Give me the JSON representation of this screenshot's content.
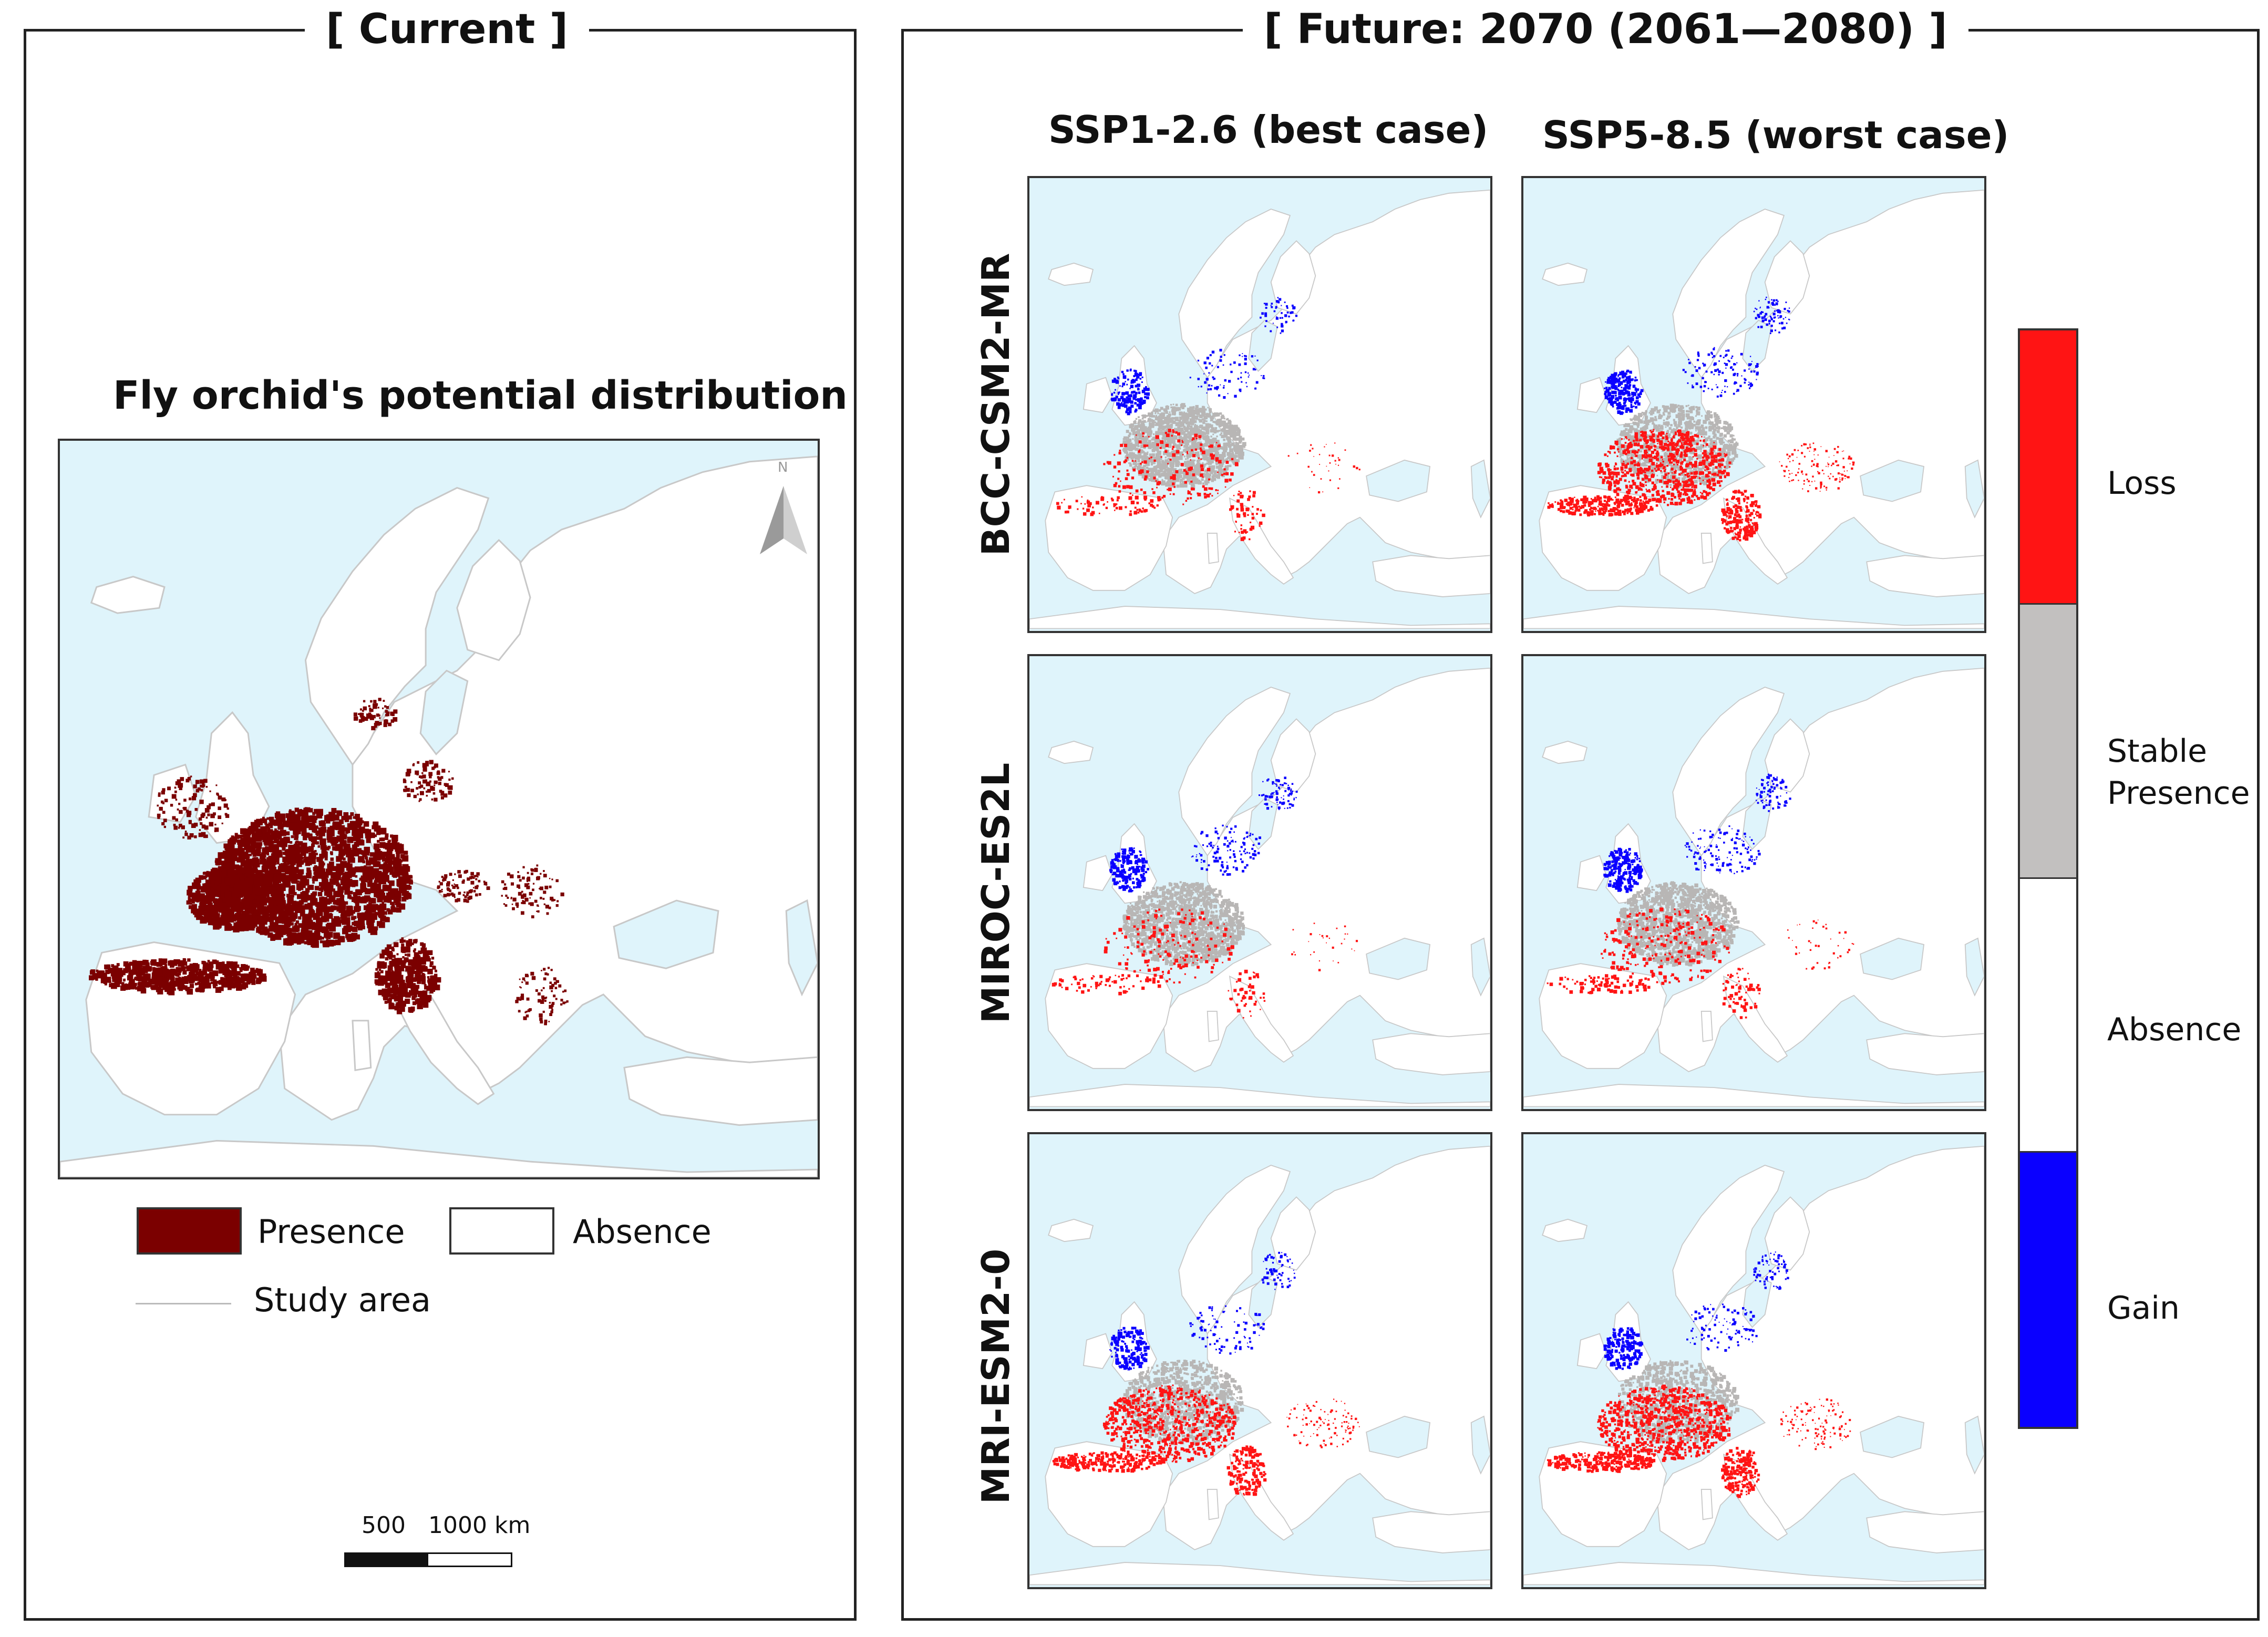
{
  "current": {
    "frame_title": "[ Current ]",
    "map_title": "Fly orchid's potential distribution",
    "north_label": "N",
    "legend": {
      "presence": "Presence",
      "absence": "Absence",
      "study_area": "Study area"
    },
    "scale": {
      "label_a": "500",
      "label_b": "1000 km"
    }
  },
  "future": {
    "frame_title": "[ Future: 2070 (2061—2080) ]",
    "scenarios": [
      "SSP1-2.6 (best case)",
      "SSP5-8.5 (worst case)"
    ],
    "models": [
      "BCC-CSM2-MR",
      "MIROC-ES2L",
      "MRI-ESM2-0"
    ]
  },
  "colorbar": {
    "entries": [
      {
        "label": "Loss",
        "color": "#ff1414"
      },
      {
        "label": "Stable\nPresence",
        "color": "#c2c0bf"
      },
      {
        "label": "Absence",
        "color": "#ffffff"
      },
      {
        "label": "Gain",
        "color": "#0a00ff"
      }
    ]
  },
  "colors": {
    "sea": "#dff4fb",
    "land": "#ffffff",
    "presence": "#7b0000",
    "loss": "#ff1414",
    "stable": "#b8b6b5",
    "gain": "#0a00ff",
    "border": "#c8c8c8",
    "frame": "#222222"
  }
}
